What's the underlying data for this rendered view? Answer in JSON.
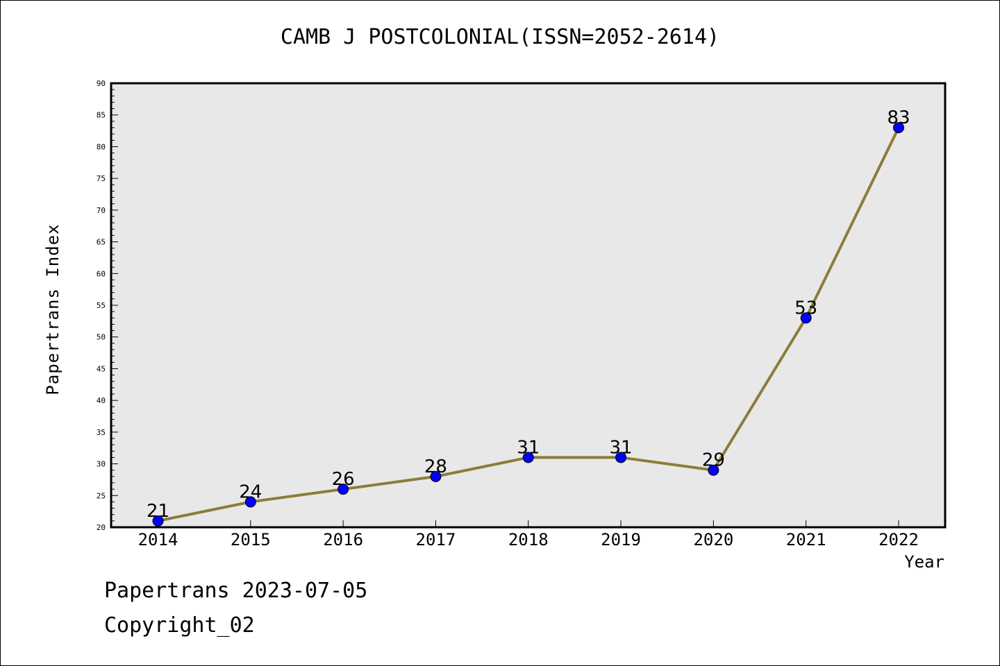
{
  "chart_data": {
    "type": "line",
    "title": "CAMB J POSTCOLONIAL(ISSN=2052-2614)",
    "xlabel": "Year",
    "ylabel": "Papertrans Index",
    "categories": [
      "2014",
      "2015",
      "2016",
      "2017",
      "2018",
      "2019",
      "2020",
      "2021",
      "2022"
    ],
    "series": [
      {
        "values": [
          21,
          24,
          26,
          28,
          31,
          31,
          29,
          53,
          83
        ]
      }
    ],
    "ylim": [
      20,
      90
    ],
    "yticks": [
      20,
      25,
      30,
      35,
      40,
      45,
      50,
      55,
      60,
      65,
      70,
      75,
      80,
      85,
      90
    ],
    "line_color": "#8B7D3A",
    "marker_color": "#0000FF",
    "plot_bg": "#E8E8E8",
    "grid": false,
    "legend": "none"
  },
  "footer": {
    "line1": "Papertrans 2023-07-05",
    "line2": "Copyright_02"
  }
}
